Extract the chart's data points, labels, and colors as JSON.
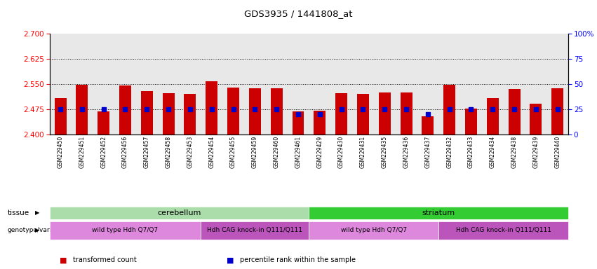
{
  "title": "GDS3935 / 1441808_at",
  "samples": [
    "GSM229450",
    "GSM229451",
    "GSM229452",
    "GSM229456",
    "GSM229457",
    "GSM229458",
    "GSM229453",
    "GSM229454",
    "GSM229455",
    "GSM229459",
    "GSM229460",
    "GSM229461",
    "GSM229429",
    "GSM229430",
    "GSM229431",
    "GSM229435",
    "GSM229436",
    "GSM229437",
    "GSM229432",
    "GSM229433",
    "GSM229434",
    "GSM229438",
    "GSM229439",
    "GSM229440"
  ],
  "bar_values": [
    2.508,
    2.548,
    2.468,
    2.545,
    2.53,
    2.522,
    2.52,
    2.558,
    2.54,
    2.538,
    2.537,
    2.468,
    2.47,
    2.522,
    2.52,
    2.525,
    2.525,
    2.455,
    2.548,
    2.478,
    2.508,
    2.535,
    2.492,
    2.538
  ],
  "percentile_values": [
    25,
    25,
    25,
    25,
    25,
    25,
    25,
    25,
    25,
    25,
    25,
    20,
    20,
    25,
    25,
    25,
    25,
    20,
    25,
    25,
    25,
    25,
    25,
    25
  ],
  "ylim_left": [
    2.4,
    2.7
  ],
  "ylim_right": [
    0,
    100
  ],
  "yticks_left": [
    2.4,
    2.475,
    2.55,
    2.625,
    2.7
  ],
  "yticks_right": [
    0,
    25,
    50,
    75,
    100
  ],
  "hlines": [
    2.475,
    2.55,
    2.625
  ],
  "bar_color": "#cc0000",
  "percentile_color": "#0000cc",
  "tissue_groups": [
    {
      "label": "cerebellum",
      "start": 0,
      "end": 12,
      "color": "#aaddaa"
    },
    {
      "label": "striatum",
      "start": 12,
      "end": 24,
      "color": "#33cc33"
    }
  ],
  "genotype_groups": [
    {
      "label": "wild type Hdh Q7/Q7",
      "start": 0,
      "end": 7,
      "color": "#dd88dd"
    },
    {
      "label": "Hdh CAG knock-in Q111/Q111",
      "start": 7,
      "end": 12,
      "color": "#bb55bb"
    },
    {
      "label": "wild type Hdh Q7/Q7",
      "start": 12,
      "end": 18,
      "color": "#dd88dd"
    },
    {
      "label": "Hdh CAG knock-in Q111/Q111",
      "start": 18,
      "end": 24,
      "color": "#bb55bb"
    }
  ],
  "legend_items": [
    {
      "label": "transformed count",
      "color": "#cc0000"
    },
    {
      "label": "percentile rank within the sample",
      "color": "#0000cc"
    }
  ],
  "background_color": "#ffffff"
}
